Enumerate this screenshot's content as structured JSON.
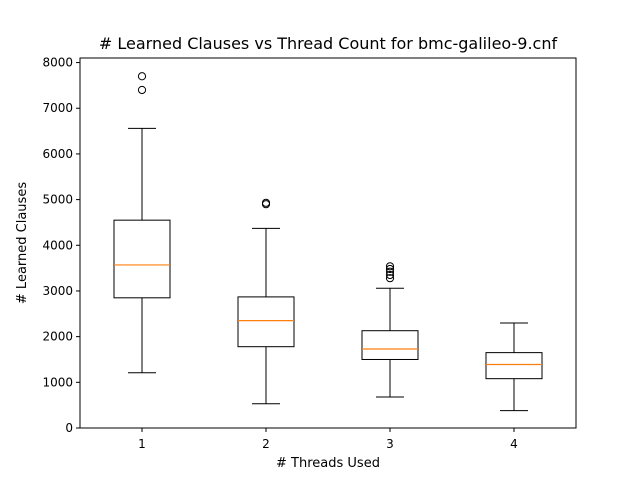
{
  "chart_data": {
    "type": "box",
    "title": "# Learned Clauses vs Thread Count for bmc-galileo-9.cnf",
    "xlabel": "# Threads Used",
    "ylabel": "# Learned Clauses",
    "ylim": [
      0,
      8100
    ],
    "yticks": [
      0,
      1000,
      2000,
      3000,
      4000,
      5000,
      6000,
      7000,
      8000
    ],
    "grid": false,
    "colors": {
      "box": "#000000",
      "median": "#ff7f0e"
    },
    "boxes": [
      {
        "category": "1",
        "whisker_low": 1210,
        "q1": 2850,
        "median": 3570,
        "q3": 4550,
        "whisker_high": 6560,
        "outliers": [
          7400,
          7700
        ]
      },
      {
        "category": "2",
        "whisker_low": 530,
        "q1": 1780,
        "median": 2350,
        "q3": 2870,
        "whisker_high": 4370,
        "outliers": [
          4900,
          4930
        ]
      },
      {
        "category": "3",
        "whisker_low": 680,
        "q1": 1500,
        "median": 1730,
        "q3": 2130,
        "whisker_high": 3060,
        "outliers": [
          3280,
          3350,
          3420,
          3480,
          3540
        ]
      },
      {
        "category": "4",
        "whisker_low": 380,
        "q1": 1080,
        "median": 1390,
        "q3": 1650,
        "whisker_high": 2300,
        "outliers": []
      }
    ]
  }
}
